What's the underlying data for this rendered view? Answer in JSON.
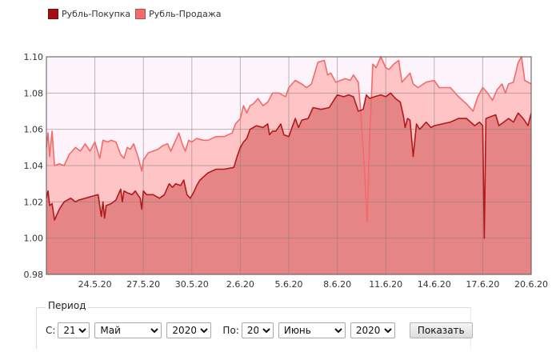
{
  "legend": [
    {
      "label": "Рубль-Покупка",
      "color": "#a30e12"
    },
    {
      "label": "Рубль-Продажа",
      "color": "#f26a6a"
    }
  ],
  "chart_data": {
    "type": "area",
    "title": "",
    "xlabel": "",
    "ylabel": "",
    "ylim": [
      0.98,
      1.1
    ],
    "y_ticks": [
      "0.98",
      "1.00",
      "1.02",
      "1.04",
      "1.06",
      "1.08",
      "1.10"
    ],
    "x_range": [
      "21.5.20",
      "20.6.20"
    ],
    "x_ticks": [
      "24.5.20",
      "27.5.20",
      "30.5.20",
      "2.6.20",
      "5.6.20",
      "8.6.20",
      "11.6.20",
      "14.6.20",
      "17.6.20",
      "20.6.20"
    ],
    "grid": true,
    "series": [
      {
        "name": "Рубль-Покупка",
        "color": "#b3191c",
        "fill": "#e58282",
        "points": [
          [
            0,
            1.022
          ],
          [
            0.1,
            1.026
          ],
          [
            0.2,
            1.018
          ],
          [
            0.35,
            1.019
          ],
          [
            0.5,
            1.01
          ],
          [
            0.8,
            1.016
          ],
          [
            1.1,
            1.02
          ],
          [
            1.5,
            1.022
          ],
          [
            1.8,
            1.02
          ],
          [
            2.0,
            1.021
          ],
          [
            2.4,
            1.022
          ],
          [
            2.8,
            1.023
          ],
          [
            3.2,
            1.024
          ],
          [
            3.4,
            1.012
          ],
          [
            3.5,
            1.02
          ],
          [
            3.6,
            1.011
          ],
          [
            3.7,
            1.018
          ],
          [
            4.0,
            1.019
          ],
          [
            4.3,
            1.021
          ],
          [
            4.6,
            1.027
          ],
          [
            4.7,
            1.02
          ],
          [
            4.8,
            1.026
          ],
          [
            5.0,
            1.025
          ],
          [
            5.3,
            1.024
          ],
          [
            5.5,
            1.026
          ],
          [
            5.8,
            1.022
          ],
          [
            5.9,
            1.016
          ],
          [
            6.0,
            1.026
          ],
          [
            6.2,
            1.024
          ],
          [
            6.6,
            1.024
          ],
          [
            7.0,
            1.022
          ],
          [
            7.3,
            1.024
          ],
          [
            7.6,
            1.03
          ],
          [
            7.8,
            1.028
          ],
          [
            8.0,
            1.03
          ],
          [
            8.3,
            1.029
          ],
          [
            8.5,
            1.032
          ],
          [
            8.7,
            1.024
          ],
          [
            8.9,
            1.022
          ],
          [
            9.1,
            1.025
          ],
          [
            9.3,
            1.029
          ],
          [
            9.5,
            1.032
          ],
          [
            10.0,
            1.036
          ],
          [
            10.5,
            1.038
          ],
          [
            11.0,
            1.038
          ],
          [
            11.6,
            1.039
          ],
          [
            11.8,
            1.045
          ],
          [
            12.0,
            1.05
          ],
          [
            12.2,
            1.053
          ],
          [
            12.4,
            1.055
          ],
          [
            12.6,
            1.06
          ],
          [
            12.8,
            1.061
          ],
          [
            13.0,
            1.062
          ],
          [
            13.4,
            1.061
          ],
          [
            13.7,
            1.063
          ],
          [
            13.8,
            1.057
          ],
          [
            14.0,
            1.059
          ],
          [
            14.2,
            1.059
          ],
          [
            14.5,
            1.063
          ],
          [
            14.7,
            1.057
          ],
          [
            15.0,
            1.056
          ],
          [
            15.4,
            1.066
          ],
          [
            15.6,
            1.061
          ],
          [
            15.8,
            1.065
          ],
          [
            16.2,
            1.066
          ],
          [
            16.5,
            1.072
          ],
          [
            17.0,
            1.071
          ],
          [
            17.5,
            1.072
          ],
          [
            18.0,
            1.079
          ],
          [
            18.4,
            1.078
          ],
          [
            18.7,
            1.079
          ],
          [
            19.0,
            1.078
          ],
          [
            19.3,
            1.07
          ],
          [
            19.6,
            1.071
          ],
          [
            19.8,
            1.079
          ],
          [
            20.0,
            1.077
          ],
          [
            20.3,
            1.078
          ],
          [
            20.7,
            1.079
          ],
          [
            21.0,
            1.078
          ],
          [
            21.3,
            1.08
          ],
          [
            21.6,
            1.077
          ],
          [
            21.9,
            1.075
          ],
          [
            22.1,
            1.067
          ],
          [
            22.2,
            1.061
          ],
          [
            22.35,
            1.066
          ],
          [
            22.5,
            1.065
          ],
          [
            22.7,
            1.045
          ],
          [
            22.9,
            1.063
          ],
          [
            23.1,
            1.06
          ],
          [
            23.5,
            1.064
          ],
          [
            23.8,
            1.061
          ],
          [
            24.0,
            1.062
          ],
          [
            24.5,
            1.063
          ],
          [
            25.0,
            1.064
          ],
          [
            25.5,
            1.066
          ],
          [
            26.0,
            1.066
          ],
          [
            26.5,
            1.062
          ],
          [
            26.8,
            1.064
          ],
          [
            27.0,
            1.062
          ],
          [
            27.1,
            1.0
          ],
          [
            27.2,
            1.066
          ],
          [
            27.5,
            1.067
          ],
          [
            27.8,
            1.068
          ],
          [
            28.0,
            1.062
          ],
          [
            28.3,
            1.064
          ],
          [
            28.6,
            1.066
          ],
          [
            28.9,
            1.064
          ],
          [
            29.2,
            1.069
          ],
          [
            29.5,
            1.066
          ],
          [
            29.8,
            1.062
          ],
          [
            30.0,
            1.069
          ]
        ]
      },
      {
        "name": "Рубль-Продажа",
        "color": "#f26a6a",
        "fill": "#ffbcbc",
        "points": [
          [
            0,
            1.05
          ],
          [
            0.1,
            1.058
          ],
          [
            0.2,
            1.045
          ],
          [
            0.35,
            1.059
          ],
          [
            0.5,
            1.04
          ],
          [
            0.8,
            1.041
          ],
          [
            1.1,
            1.04
          ],
          [
            1.4,
            1.046
          ],
          [
            1.8,
            1.05
          ],
          [
            2.1,
            1.048
          ],
          [
            2.4,
            1.052
          ],
          [
            2.7,
            1.048
          ],
          [
            3.0,
            1.053
          ],
          [
            3.3,
            1.044
          ],
          [
            3.5,
            1.054
          ],
          [
            3.8,
            1.053
          ],
          [
            4.0,
            1.054
          ],
          [
            4.3,
            1.053
          ],
          [
            4.6,
            1.046
          ],
          [
            4.8,
            1.044
          ],
          [
            5.0,
            1.05
          ],
          [
            5.2,
            1.049
          ],
          [
            5.4,
            1.052
          ],
          [
            5.7,
            1.044
          ],
          [
            5.9,
            1.037
          ],
          [
            6.0,
            1.043
          ],
          [
            6.3,
            1.047
          ],
          [
            6.6,
            1.048
          ],
          [
            6.9,
            1.049
          ],
          [
            7.2,
            1.051
          ],
          [
            7.5,
            1.052
          ],
          [
            7.7,
            1.048
          ],
          [
            8.0,
            1.054
          ],
          [
            8.2,
            1.058
          ],
          [
            8.4,
            1.052
          ],
          [
            8.6,
            1.048
          ],
          [
            8.8,
            1.054
          ],
          [
            9.0,
            1.053
          ],
          [
            9.3,
            1.055
          ],
          [
            9.7,
            1.054
          ],
          [
            10.0,
            1.054
          ],
          [
            10.5,
            1.056
          ],
          [
            11.0,
            1.056
          ],
          [
            11.5,
            1.058
          ],
          [
            11.7,
            1.063
          ],
          [
            12.0,
            1.066
          ],
          [
            12.2,
            1.073
          ],
          [
            12.4,
            1.069
          ],
          [
            12.6,
            1.073
          ],
          [
            12.8,
            1.074
          ],
          [
            13.1,
            1.077
          ],
          [
            13.4,
            1.073
          ],
          [
            13.7,
            1.075
          ],
          [
            14.0,
            1.08
          ],
          [
            14.4,
            1.08
          ],
          [
            14.8,
            1.078
          ],
          [
            15.0,
            1.083
          ],
          [
            15.4,
            1.087
          ],
          [
            15.8,
            1.085
          ],
          [
            16.1,
            1.083
          ],
          [
            16.4,
            1.085
          ],
          [
            16.8,
            1.097
          ],
          [
            17.2,
            1.098
          ],
          [
            17.4,
            1.09
          ],
          [
            17.6,
            1.091
          ],
          [
            17.9,
            1.086
          ],
          [
            18.2,
            1.087
          ],
          [
            18.5,
            1.088
          ],
          [
            18.8,
            1.087
          ],
          [
            19.0,
            1.09
          ],
          [
            19.3,
            1.086
          ],
          [
            19.5,
            1.064
          ],
          [
            19.7,
            1.035
          ],
          [
            19.85,
            1.009
          ],
          [
            20.0,
            1.055
          ],
          [
            20.2,
            1.096
          ],
          [
            20.4,
            1.094
          ],
          [
            20.7,
            1.1
          ],
          [
            21.0,
            1.094
          ],
          [
            21.2,
            1.093
          ],
          [
            21.5,
            1.096
          ],
          [
            21.8,
            1.098
          ],
          [
            22.0,
            1.086
          ],
          [
            22.3,
            1.089
          ],
          [
            22.5,
            1.091
          ],
          [
            22.7,
            1.085
          ],
          [
            23.0,
            1.083
          ],
          [
            23.5,
            1.086
          ],
          [
            24.0,
            1.087
          ],
          [
            24.3,
            1.083
          ],
          [
            24.6,
            1.083
          ],
          [
            25.0,
            1.083
          ],
          [
            25.5,
            1.078
          ],
          [
            26.0,
            1.074
          ],
          [
            26.4,
            1.07
          ],
          [
            26.7,
            1.078
          ],
          [
            27.0,
            1.083
          ],
          [
            27.3,
            1.08
          ],
          [
            27.6,
            1.076
          ],
          [
            27.9,
            1.082
          ],
          [
            28.2,
            1.085
          ],
          [
            28.4,
            1.08
          ],
          [
            28.6,
            1.085
          ],
          [
            28.9,
            1.086
          ],
          [
            29.2,
            1.097
          ],
          [
            29.4,
            1.1
          ],
          [
            29.6,
            1.087
          ],
          [
            29.8,
            1.086
          ],
          [
            30.0,
            1.085
          ]
        ]
      }
    ]
  },
  "period": {
    "title": "Период",
    "from_label": "С:",
    "from_day": "21",
    "from_month": "Май",
    "from_year": "2020",
    "to_label": "По:",
    "to_day": "20",
    "to_month": "Июнь",
    "to_year": "2020",
    "show_button": "Показать"
  }
}
